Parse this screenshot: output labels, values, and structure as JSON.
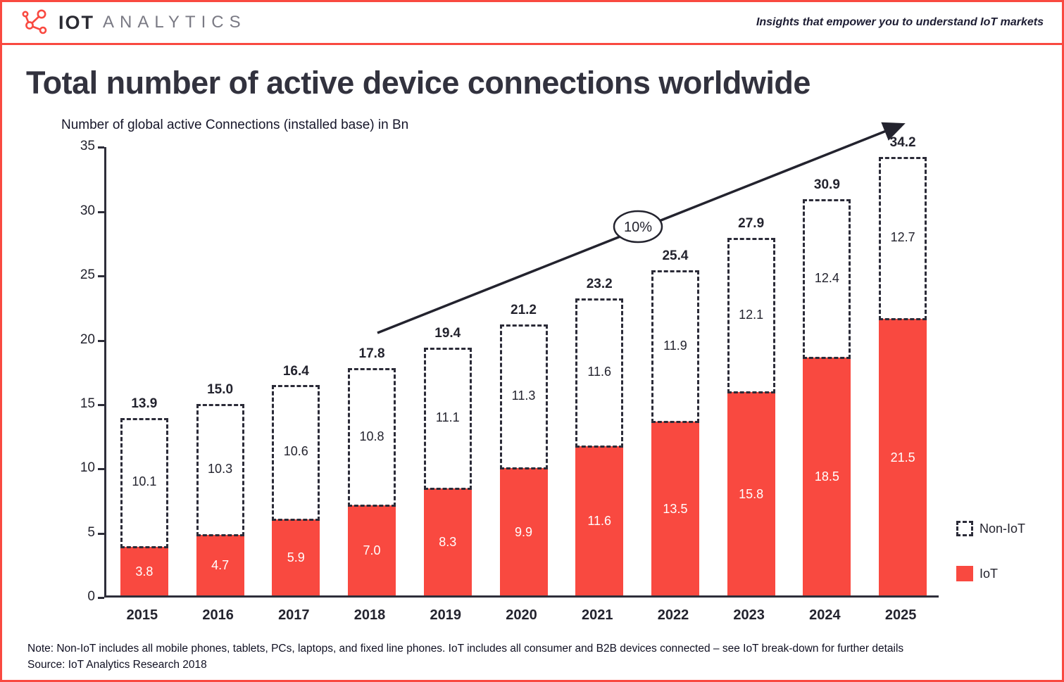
{
  "header": {
    "brand_primary": "IOT",
    "brand_secondary": "ANALYTICS",
    "tagline": "Insights that empower you to understand IoT markets"
  },
  "title": "Total number of active device connections worldwide",
  "chart_data": {
    "type": "bar",
    "stacked": true,
    "axis_title": "Number of global active Connections (installed base) in Bn",
    "categories": [
      "2015",
      "2016",
      "2017",
      "2018",
      "2019",
      "2020",
      "2021",
      "2022",
      "2023",
      "2024",
      "2025"
    ],
    "series": [
      {
        "name": "IoT",
        "color": "#f94940",
        "values": [
          3.8,
          4.7,
          5.9,
          7.0,
          8.3,
          9.9,
          11.6,
          13.5,
          15.8,
          18.5,
          21.5
        ]
      },
      {
        "name": "Non-IoT",
        "style": "dashed-outline",
        "values": [
          10.1,
          10.3,
          10.6,
          10.8,
          11.1,
          11.3,
          11.6,
          11.9,
          12.1,
          12.4,
          12.7
        ]
      }
    ],
    "totals": [
      13.9,
      15.0,
      16.4,
      17.8,
      19.4,
      21.2,
      23.2,
      25.4,
      27.9,
      30.9,
      34.2
    ],
    "ylim": [
      0,
      35
    ],
    "yticks": [
      0,
      5,
      10,
      15,
      20,
      25,
      30,
      35
    ],
    "annotation": {
      "label": "10%"
    },
    "legend": [
      {
        "label": "Non-IoT",
        "swatch": "dashed"
      },
      {
        "label": "IoT",
        "swatch": "solid-red"
      }
    ]
  },
  "footer": {
    "note": "Note: Non-IoT includes all mobile phones, tablets, PCs, laptops, and fixed line phones. IoT includes all consumer and B2B devices connected – see IoT break-down for further details",
    "source": "Source: IoT Analytics Research 2018"
  }
}
